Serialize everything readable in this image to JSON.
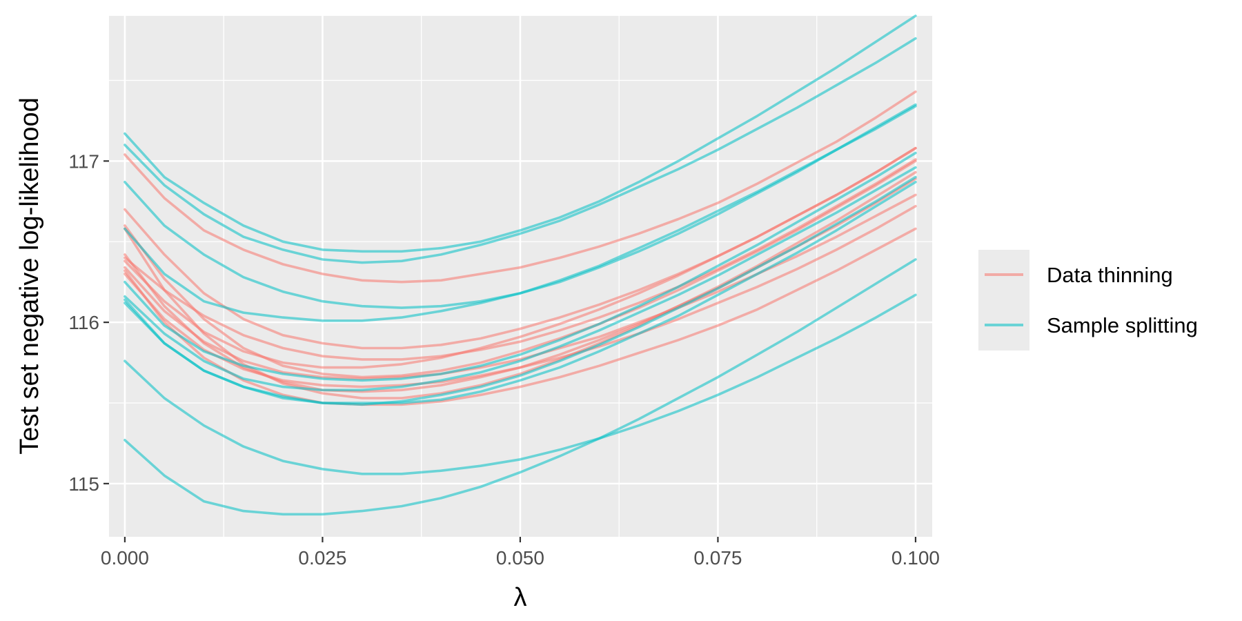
{
  "chart_data": {
    "type": "line",
    "title": "",
    "xlabel": "λ",
    "ylabel": "Test set negative log-likelihood",
    "xlim": [
      -0.002,
      0.1021
    ],
    "ylim": [
      114.67,
      117.9
    ],
    "x_ticks": [
      0.0,
      0.025,
      0.05,
      0.075,
      0.1
    ],
    "x_tick_labels": [
      "0.000",
      "0.025",
      "0.050",
      "0.075",
      "0.100"
    ],
    "y_ticks": [
      115,
      116,
      117
    ],
    "y_tick_labels": [
      "115",
      "116",
      "117"
    ],
    "grid": true,
    "legend": {
      "position": "right",
      "entries": [
        {
          "label": "Data thinning",
          "color": "#F8766D"
        },
        {
          "label": "Sample splitting",
          "color": "#00BFC4"
        }
      ]
    },
    "x": [
      0.0,
      0.005,
      0.01,
      0.015,
      0.02,
      0.025,
      0.03,
      0.035,
      0.04,
      0.045,
      0.05,
      0.055,
      0.06,
      0.065,
      0.07,
      0.075,
      0.08,
      0.085,
      0.09,
      0.095,
      0.1
    ],
    "series": [
      {
        "group": "Data thinning",
        "color": "#F8766D",
        "values": [
          117.04,
          116.77,
          116.57,
          116.45,
          116.36,
          116.3,
          116.26,
          116.25,
          116.26,
          116.3,
          116.34,
          116.4,
          116.47,
          116.55,
          116.64,
          116.74,
          116.86,
          116.99,
          117.12,
          117.27,
          117.43
        ]
      },
      {
        "group": "Data thinning",
        "color": "#F8766D",
        "values": [
          116.7,
          116.42,
          116.18,
          116.02,
          115.92,
          115.87,
          115.84,
          115.84,
          115.86,
          115.9,
          115.96,
          116.03,
          116.11,
          116.2,
          116.3,
          116.41,
          116.53,
          116.66,
          116.79,
          116.93,
          117.08
        ]
      },
      {
        "group": "Data thinning",
        "color": "#F8766D",
        "values": [
          116.6,
          116.27,
          116.02,
          115.84,
          115.73,
          115.68,
          115.66,
          115.67,
          115.7,
          115.75,
          115.82,
          115.9,
          115.99,
          116.09,
          116.2,
          116.32,
          116.44,
          116.57,
          116.71,
          116.85,
          117.0
        ]
      },
      {
        "group": "Data thinning",
        "color": "#F8766D",
        "values": [
          116.58,
          116.2,
          115.93,
          115.74,
          115.62,
          115.56,
          115.53,
          115.53,
          115.56,
          115.61,
          115.68,
          115.77,
          115.87,
          115.98,
          116.1,
          116.22,
          116.35,
          116.49,
          116.63,
          116.78,
          116.93
        ]
      },
      {
        "group": "Data thinning",
        "color": "#F8766D",
        "values": [
          116.42,
          116.1,
          115.87,
          115.72,
          115.63,
          115.58,
          115.57,
          115.58,
          115.61,
          115.66,
          115.72,
          115.8,
          115.89,
          115.99,
          116.1,
          116.21,
          116.34,
          116.47,
          116.6,
          116.74,
          116.89
        ]
      },
      {
        "group": "Data thinning",
        "color": "#F8766D",
        "values": [
          116.4,
          116.2,
          116.04,
          115.92,
          115.84,
          115.79,
          115.77,
          115.77,
          115.79,
          115.83,
          115.88,
          115.95,
          116.03,
          116.12,
          116.22,
          116.33,
          116.45,
          116.58,
          116.72,
          116.86,
          117.01
        ]
      },
      {
        "group": "Data thinning",
        "color": "#F8766D",
        "values": [
          116.38,
          116.13,
          115.94,
          115.82,
          115.75,
          115.72,
          115.72,
          115.74,
          115.78,
          115.84,
          115.91,
          115.99,
          116.08,
          116.18,
          116.29,
          116.41,
          116.53,
          116.66,
          116.79,
          116.93,
          117.08
        ]
      },
      {
        "group": "Data thinning",
        "color": "#F8766D",
        "values": [
          116.34,
          116.07,
          115.88,
          115.76,
          115.69,
          115.66,
          115.65,
          115.66,
          115.68,
          115.72,
          115.77,
          115.84,
          115.91,
          116.0,
          116.09,
          116.19,
          116.3,
          116.41,
          116.53,
          116.66,
          116.79
        ]
      },
      {
        "group": "Data thinning",
        "color": "#F8766D",
        "values": [
          116.3,
          116.02,
          115.83,
          115.71,
          115.64,
          115.61,
          115.6,
          115.61,
          115.63,
          115.67,
          115.72,
          115.78,
          115.85,
          115.93,
          116.02,
          116.12,
          116.22,
          116.33,
          116.45,
          116.58,
          116.72
        ]
      },
      {
        "group": "Data thinning",
        "color": "#F8766D",
        "values": [
          116.32,
          116.0,
          115.78,
          115.64,
          115.55,
          115.5,
          115.49,
          115.49,
          115.51,
          115.55,
          115.6,
          115.66,
          115.73,
          115.81,
          115.89,
          115.98,
          116.08,
          116.2,
          116.32,
          116.45,
          116.58
        ]
      },
      {
        "group": "Sample splitting",
        "color": "#00BFC4",
        "values": [
          117.17,
          116.9,
          116.74,
          116.6,
          116.5,
          116.45,
          116.44,
          116.44,
          116.46,
          116.5,
          116.57,
          116.65,
          116.75,
          116.87,
          117.0,
          117.14,
          117.28,
          117.43,
          117.58,
          117.74,
          117.9
        ]
      },
      {
        "group": "Sample splitting",
        "color": "#00BFC4",
        "values": [
          117.1,
          116.85,
          116.67,
          116.53,
          116.45,
          116.39,
          116.37,
          116.38,
          116.42,
          116.48,
          116.55,
          116.63,
          116.73,
          116.84,
          116.95,
          117.07,
          117.2,
          117.33,
          117.47,
          117.61,
          117.76
        ]
      },
      {
        "group": "Sample splitting",
        "color": "#00BFC4",
        "values": [
          116.87,
          116.6,
          116.42,
          116.28,
          116.19,
          116.13,
          116.1,
          116.09,
          116.1,
          116.13,
          116.18,
          116.25,
          116.34,
          116.44,
          116.55,
          116.67,
          116.8,
          116.93,
          117.07,
          117.21,
          117.35
        ]
      },
      {
        "group": "Sample splitting",
        "color": "#00BFC4",
        "values": [
          116.58,
          116.3,
          116.13,
          116.06,
          116.03,
          116.01,
          116.01,
          116.03,
          116.07,
          116.12,
          116.18,
          116.26,
          116.35,
          116.46,
          116.57,
          116.69,
          116.81,
          116.94,
          117.07,
          117.2,
          117.34
        ]
      },
      {
        "group": "Sample splitting",
        "color": "#00BFC4",
        "values": [
          116.25,
          115.98,
          115.82,
          115.73,
          115.68,
          115.65,
          115.64,
          115.65,
          115.68,
          115.73,
          115.8,
          115.89,
          115.99,
          116.1,
          116.22,
          116.35,
          116.48,
          116.62,
          116.76,
          116.9,
          117.05
        ]
      },
      {
        "group": "Sample splitting",
        "color": "#00BFC4",
        "values": [
          116.16,
          115.93,
          115.76,
          115.65,
          115.6,
          115.58,
          115.58,
          115.6,
          115.64,
          115.69,
          115.76,
          115.85,
          115.95,
          116.06,
          116.17,
          116.29,
          116.42,
          116.55,
          116.68,
          116.82,
          116.96
        ]
      },
      {
        "group": "Sample splitting",
        "color": "#00BFC4",
        "values": [
          116.12,
          115.87,
          115.7,
          115.6,
          115.53,
          115.5,
          115.49,
          115.51,
          115.55,
          115.6,
          115.67,
          115.76,
          115.86,
          115.97,
          116.09,
          116.21,
          116.34,
          116.47,
          116.61,
          116.75,
          116.9
        ]
      },
      {
        "group": "Sample splitting",
        "color": "#00BFC4",
        "values": [
          116.14,
          115.87,
          115.7,
          115.6,
          115.54,
          115.5,
          115.5,
          115.5,
          115.52,
          115.57,
          115.64,
          115.72,
          115.82,
          115.93,
          116.04,
          116.17,
          116.3,
          116.43,
          116.57,
          116.72,
          116.87
        ]
      },
      {
        "group": "Sample splitting",
        "color": "#00BFC4",
        "values": [
          115.76,
          115.53,
          115.36,
          115.23,
          115.14,
          115.09,
          115.06,
          115.06,
          115.08,
          115.11,
          115.15,
          115.21,
          115.28,
          115.36,
          115.45,
          115.55,
          115.66,
          115.78,
          115.9,
          116.03,
          116.17
        ]
      },
      {
        "group": "Sample splitting",
        "color": "#00BFC4",
        "values": [
          115.27,
          115.05,
          114.89,
          114.83,
          114.81,
          114.81,
          114.83,
          114.86,
          114.91,
          114.98,
          115.07,
          115.17,
          115.28,
          115.4,
          115.53,
          115.66,
          115.8,
          115.94,
          116.09,
          116.24,
          116.39
        ]
      }
    ]
  }
}
